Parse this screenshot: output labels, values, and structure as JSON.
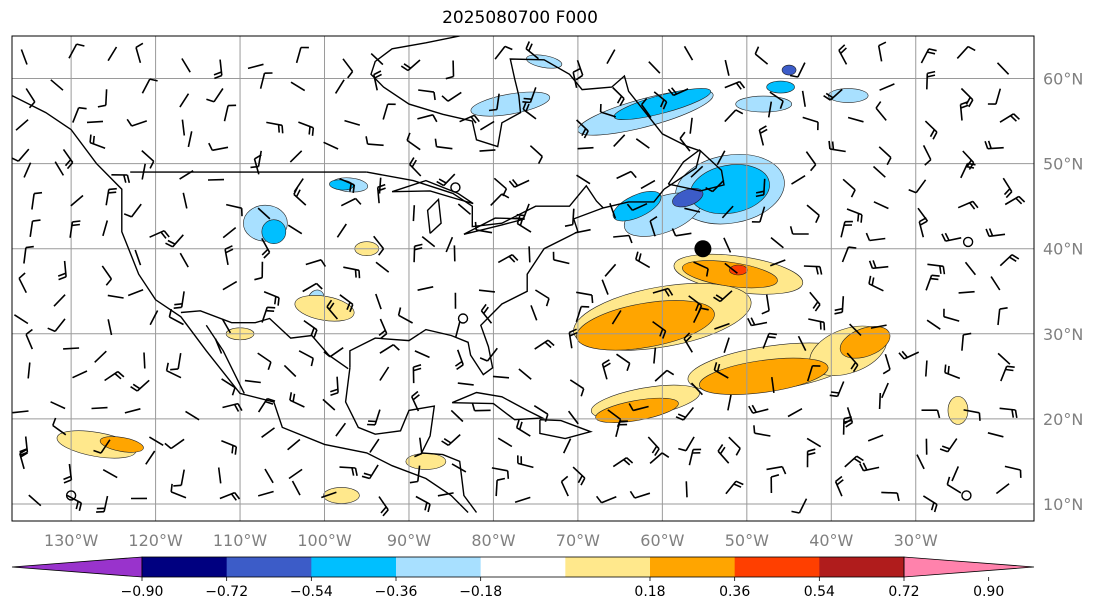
{
  "title": "2025080700 F000",
  "map": {
    "lon_range": [
      -137,
      -16
    ],
    "lat_range": [
      8,
      65
    ],
    "grid_lons": [
      -130,
      -120,
      -110,
      -100,
      -90,
      -80,
      -70,
      -60,
      -50,
      -40,
      -30
    ],
    "grid_lats": [
      10,
      20,
      30,
      40,
      50,
      60
    ],
    "lon_labels": [
      "130°W",
      "120°W",
      "110°W",
      "100°W",
      "90°W",
      "80°W",
      "70°W",
      "60°W",
      "50°W",
      "40°W",
      "30°W"
    ],
    "lat_labels": [
      "10°N",
      "20°N",
      "30°N",
      "40°N",
      "50°N",
      "60°N"
    ],
    "markers": [
      {
        "lon": -55.2,
        "lat": 40.0,
        "type": "filled-dot"
      },
      {
        "lon": -84.5,
        "lat": 47.2,
        "type": "open-circle"
      },
      {
        "lon": -83.6,
        "lat": 31.8,
        "type": "open-circle"
      },
      {
        "lon": -130.0,
        "lat": 11.0,
        "type": "open-circle"
      },
      {
        "lon": -23.8,
        "lat": 40.8,
        "type": "open-circle"
      },
      {
        "lon": -24.0,
        "lat": 11.0,
        "type": "open-circle"
      }
    ]
  },
  "colorbar": {
    "colors": [
      "#9933cc",
      "#000080",
      "#3c5cc8",
      "#00bfff",
      "#a8e0ff",
      "#ffffff",
      "#ffe88c",
      "#ffa500",
      "#ff3f00",
      "#b01c1c",
      "#ff82ac"
    ],
    "tick_labels": [
      "−0.90",
      "−0.72",
      "−0.54",
      "−0.36",
      "−0.18",
      "0.18",
      "0.36",
      "0.54",
      "0.72",
      "0.90"
    ]
  }
}
